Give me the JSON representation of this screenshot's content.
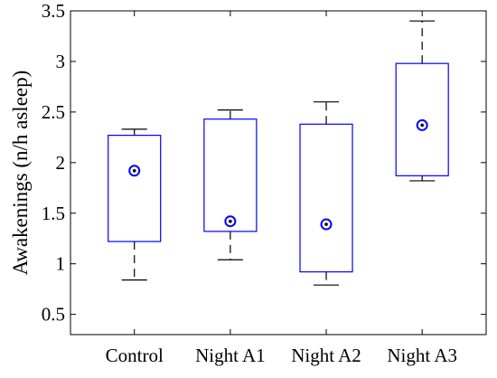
{
  "chart_data": {
    "type": "box",
    "title": "",
    "xlabel": "",
    "ylabel": "Awakenings (n/h asleep)",
    "ylim": [
      0.3,
      3.5
    ],
    "y_ticks": [
      0.5,
      1,
      1.5,
      2,
      2.5,
      3,
      3.5
    ],
    "y_tick_labels": [
      "0.5",
      "1",
      "1.5",
      "2",
      "2.5",
      "3",
      "3.5"
    ],
    "grid": false,
    "categories": [
      "Control",
      "Night A1",
      "Night A2",
      "Night A3"
    ],
    "boxes": [
      {
        "category": "Control",
        "whisker_low": 0.84,
        "q1": 1.22,
        "q3": 2.27,
        "whisker_high": 2.33,
        "median": 1.92
      },
      {
        "category": "Night A1",
        "whisker_low": 1.04,
        "q1": 1.32,
        "q3": 2.43,
        "whisker_high": 2.52,
        "median": 1.42
      },
      {
        "category": "Night A2",
        "whisker_low": 0.79,
        "q1": 0.92,
        "q3": 2.38,
        "whisker_high": 2.6,
        "median": 1.39
      },
      {
        "category": "Night A3",
        "whisker_low": 1.82,
        "q1": 1.87,
        "q3": 2.98,
        "whisker_high": 3.4,
        "median": 2.37
      }
    ],
    "colors": {
      "box": "#0000ff",
      "whisker": "#000000",
      "median_marker": "#0000ff",
      "axes": "#000000"
    }
  }
}
